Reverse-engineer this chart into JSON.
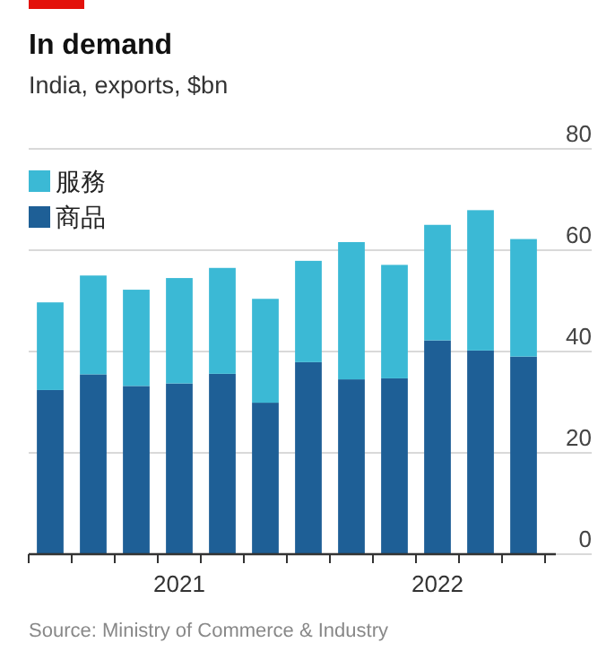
{
  "chart_data": {
    "type": "bar",
    "title": "In demand",
    "subtitle": "India, exports, $bn",
    "annotations": [
      "Source: Ministry of Commerce & Industry"
    ],
    "categories": [
      null,
      null,
      null,
      "2021",
      null,
      null,
      null,
      null,
      null,
      "2022",
      null,
      null
    ],
    "stacked": true,
    "series": [
      {
        "name": "商品",
        "color": "#1e5f96",
        "values": [
          32.4,
          35.5,
          33.2,
          33.7,
          35.6,
          29.9,
          37.9,
          34.5,
          34.7,
          42.2,
          40.2,
          39.0
        ]
      },
      {
        "name": "服務",
        "color": "#3bb9d5",
        "values": [
          17.3,
          19.5,
          19.0,
          20.8,
          20.9,
          20.5,
          20.0,
          27.1,
          22.4,
          22.8,
          27.7,
          23.2
        ]
      }
    ],
    "ylim": [
      0,
      80
    ],
    "yticks": [
      0,
      20,
      40,
      60,
      80
    ],
    "grid": "y",
    "legend": "top left"
  }
}
